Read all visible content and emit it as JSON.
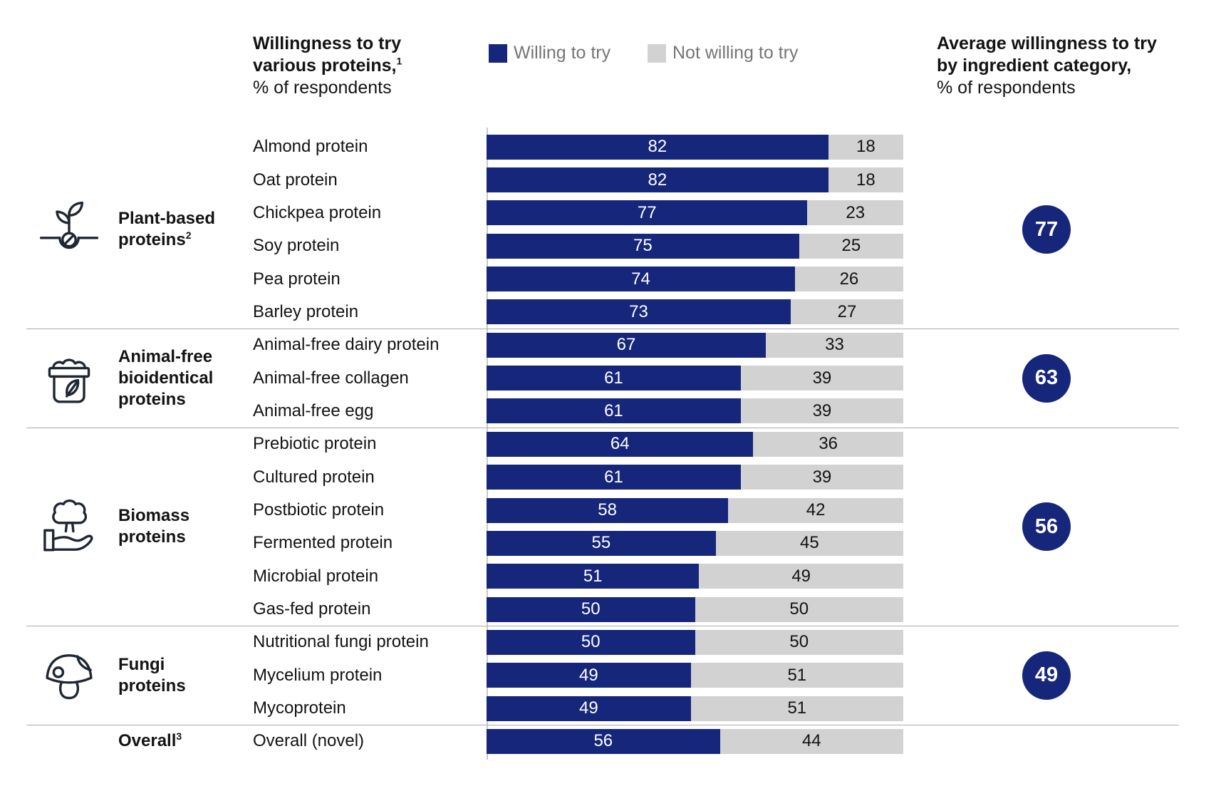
{
  "colors": {
    "willing_bar": "#15267B",
    "not_willing_bar": "#D2D2D2",
    "legend_text": "#757575",
    "text": "#131313",
    "divider": "#ABABAB",
    "axis_line": "#C9C9C9",
    "bar_value_on_blue": "#FFFFFF",
    "circle_fill": "#15267B"
  },
  "chart_data": {
    "type": "bar",
    "stacked": true,
    "orientation": "horizontal",
    "x_range": [
      0,
      100
    ],
    "grid": false,
    "title_bold": "Willingness to try\nvarious proteins,",
    "title_sup": "1",
    "title_unit": "% of respondents",
    "right_title_bold": "Average willingness to try\nby ingredient category,",
    "right_title_unit": "% of respondents",
    "legend": [
      {
        "name": "Willing to try",
        "color": "#15267B"
      },
      {
        "name": "Not willing to try",
        "color": "#D2D2D2"
      }
    ],
    "series_names": [
      "Willing to try",
      "Not willing to try"
    ],
    "groups": [
      {
        "category": "Plant-based proteins",
        "category_sup": "2",
        "icon": "seedling-icon",
        "average": 77,
        "rows": [
          {
            "label": "Almond protein",
            "willing": 82,
            "not_willing": 18
          },
          {
            "label": "Oat protein",
            "willing": 82,
            "not_willing": 18
          },
          {
            "label": "Chickpea protein",
            "willing": 77,
            "not_willing": 23
          },
          {
            "label": "Soy protein",
            "willing": 75,
            "not_willing": 25
          },
          {
            "label": "Pea protein",
            "willing": 74,
            "not_willing": 26
          },
          {
            "label": "Barley protein",
            "willing": 73,
            "not_willing": 27
          }
        ]
      },
      {
        "category": "Animal-free bioidentical proteins",
        "category_sup": "",
        "icon": "container-leaf-icon",
        "average": 63,
        "rows": [
          {
            "label": "Animal-free dairy protein",
            "willing": 67,
            "not_willing": 33
          },
          {
            "label": "Animal-free collagen",
            "willing": 61,
            "not_willing": 39
          },
          {
            "label": "Animal-free egg",
            "willing": 61,
            "not_willing": 39
          }
        ]
      },
      {
        "category": "Biomass proteins",
        "category_sup": "",
        "icon": "hand-tree-icon",
        "average": 56,
        "rows": [
          {
            "label": "Prebiotic protein",
            "willing": 64,
            "not_willing": 36
          },
          {
            "label": "Cultured protein",
            "willing": 61,
            "not_willing": 39
          },
          {
            "label": "Postbiotic protein",
            "willing": 58,
            "not_willing": 42
          },
          {
            "label": "Fermented protein",
            "willing": 55,
            "not_willing": 45
          },
          {
            "label": "Microbial protein",
            "willing": 51,
            "not_willing": 49
          },
          {
            "label": "Gas-fed protein",
            "willing": 50,
            "not_willing": 50
          }
        ]
      },
      {
        "category": "Fungi proteins",
        "category_sup": "",
        "icon": "mushroom-icon",
        "average": 49,
        "rows": [
          {
            "label": "Nutritional fungi protein",
            "willing": 50,
            "not_willing": 50
          },
          {
            "label": "Mycelium protein",
            "willing": 49,
            "not_willing": 51
          },
          {
            "label": "Mycoprotein",
            "willing": 49,
            "not_willing": 51
          }
        ]
      },
      {
        "category": "Overall",
        "category_sup": "3",
        "icon": null,
        "average": null,
        "rows": [
          {
            "label": "Overall (novel)",
            "willing": 56,
            "not_willing": 44
          }
        ]
      }
    ]
  }
}
